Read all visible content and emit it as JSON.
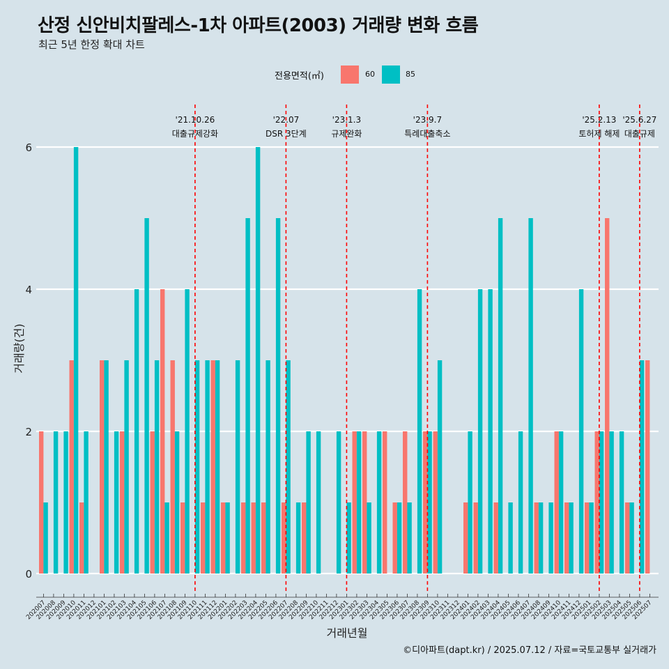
{
  "header": {
    "title": "산정 신안비치팔레스-1차 아파트(2003) 거래량 변화 흐름",
    "subtitle": "최근 5년 한정 확대 차트"
  },
  "legend": {
    "title": "전용면적(㎡)",
    "items": [
      {
        "label": "60",
        "color": "#f8766d"
      },
      {
        "label": "85",
        "color": "#00bfc4"
      }
    ]
  },
  "caption": "©디아파트(dapt.kr) / 2025.07.12 / 자료=국토교통부 실거래가",
  "chart_data": {
    "type": "bar",
    "title": "산정 신안비치팔레스-1차 아파트(2003) 거래량 변화 흐름",
    "xlabel": "거래년월",
    "ylabel": "거래량(건)",
    "ylim": [
      0,
      6.4
    ],
    "yticks": [
      0,
      2,
      4,
      6
    ],
    "grid": true,
    "legend_position": "top",
    "categories": [
      "202007",
      "202008",
      "202009",
      "202010",
      "202011",
      "202012",
      "202101",
      "202102",
      "202103",
      "202104",
      "202105",
      "202106",
      "202107",
      "202108",
      "202109",
      "202110",
      "202111",
      "202112",
      "202201",
      "202202",
      "202203",
      "202204",
      "202205",
      "202206",
      "202207",
      "202208",
      "202209",
      "202210",
      "202211",
      "202212",
      "202301",
      "202302",
      "202303",
      "202304",
      "202305",
      "202306",
      "202307",
      "202308",
      "202309",
      "202310",
      "202311",
      "202312",
      "202401",
      "202402",
      "202403",
      "202404",
      "202405",
      "202406",
      "202407",
      "202408",
      "202409",
      "202410",
      "202411",
      "202412",
      "202501",
      "202502",
      "202503",
      "202504",
      "202505",
      "202506",
      "202507"
    ],
    "series": [
      {
        "name": "60",
        "color": "#f8766d",
        "values": [
          2,
          0,
          0,
          3,
          1,
          0,
          3,
          0,
          2,
          0,
          0,
          2,
          4,
          3,
          1,
          0,
          1,
          3,
          1,
          0,
          1,
          1,
          1,
          0,
          1,
          0,
          1,
          0,
          0,
          0,
          0,
          2,
          2,
          0,
          2,
          1,
          2,
          0,
          2,
          2,
          0,
          0,
          1,
          1,
          0,
          1,
          0,
          0,
          0,
          1,
          0,
          2,
          1,
          0,
          1,
          2,
          5,
          0,
          1,
          0,
          3
        ]
      },
      {
        "name": "85",
        "color": "#00bfc4",
        "values": [
          1,
          2,
          2,
          6,
          2,
          0,
          3,
          2,
          3,
          4,
          5,
          3,
          1,
          2,
          4,
          3,
          3,
          3,
          1,
          3,
          5,
          6,
          3,
          5,
          3,
          1,
          2,
          2,
          0,
          2,
          1,
          2,
          1,
          2,
          0,
          1,
          1,
          4,
          2,
          3,
          0,
          0,
          2,
          4,
          4,
          5,
          1,
          2,
          5,
          1,
          1,
          2,
          1,
          4,
          1,
          2,
          2,
          2,
          1,
          3,
          0
        ]
      }
    ],
    "annotations": [
      {
        "x": "202110",
        "date": "'21.10.26",
        "label": "대출규제강화"
      },
      {
        "x": "202207",
        "date": "'22.07",
        "label": "DSR 3단계"
      },
      {
        "x": "202301",
        "date": "'23.1.3",
        "label": "규제완화"
      },
      {
        "x": "202309",
        "date": "'23.9.7",
        "label": "특례대출축소"
      },
      {
        "x": "202502",
        "date": "'25.2.13",
        "label": "토허제 해제"
      },
      {
        "x": "202506",
        "date": "'25.6.27",
        "label": "대출규제"
      }
    ]
  }
}
